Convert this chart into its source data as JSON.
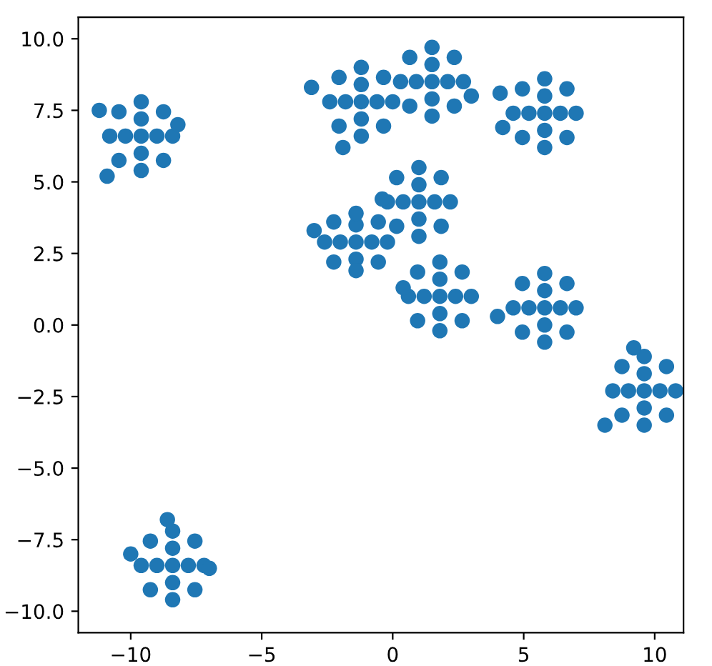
{
  "chart_data": {
    "type": "scatter",
    "x": [
      -9.6,
      -9.0,
      -10.2,
      -9.6,
      -9.6,
      -8.4,
      -10.8,
      -9.6,
      -9.6,
      -8.75,
      -10.45,
      -8.75,
      -10.45,
      -11.2,
      -10.9,
      -8.2,
      -1.4,
      -0.8,
      -2.0,
      -1.4,
      -1.4,
      -0.2,
      -2.6,
      -1.4,
      -1.4,
      -0.55,
      -2.25,
      -0.55,
      -2.25,
      -3.0,
      -1.2,
      -0.6,
      -1.8,
      -1.2,
      -1.2,
      0.0,
      -2.4,
      -1.2,
      -1.2,
      -0.35,
      -2.05,
      -0.35,
      -2.05,
      -3.1,
      -1.9,
      1.5,
      2.1,
      0.9,
      1.5,
      1.5,
      2.7,
      0.3,
      1.5,
      1.5,
      2.35,
      0.65,
      2.35,
      0.65,
      3.0,
      1.0,
      1.6,
      0.4,
      1.0,
      1.0,
      2.2,
      -0.2,
      1.0,
      1.0,
      1.85,
      0.15,
      1.85,
      0.15,
      -0.4,
      1.8,
      2.4,
      1.2,
      1.8,
      1.8,
      3.0,
      0.6,
      1.8,
      1.8,
      2.65,
      0.95,
      2.65,
      0.95,
      0.4,
      5.8,
      6.4,
      5.2,
      5.8,
      5.8,
      7.0,
      4.6,
      5.8,
      5.8,
      6.65,
      4.95,
      6.65,
      4.95,
      4.2,
      4.1,
      5.8,
      6.4,
      5.2,
      5.8,
      5.8,
      7.0,
      4.6,
      5.8,
      5.8,
      6.65,
      4.95,
      6.65,
      4.95,
      4.0,
      9.6,
      10.2,
      9.0,
      9.6,
      9.6,
      10.8,
      8.4,
      9.6,
      9.6,
      10.45,
      8.75,
      10.45,
      8.75,
      9.2,
      8.1,
      -8.4,
      -7.8,
      -9.0,
      -8.4,
      -8.4,
      -7.2,
      -9.6,
      -8.4,
      -8.4,
      -7.55,
      -9.25,
      -7.55,
      -9.25,
      -10.0,
      -8.6,
      -7.0
    ],
    "values": [
      6.6,
      6.6,
      6.6,
      7.2,
      6.0,
      6.6,
      6.6,
      7.8,
      5.4,
      7.45,
      7.45,
      5.75,
      5.75,
      7.5,
      5.2,
      7.0,
      2.9,
      2.9,
      2.9,
      3.5,
      2.3,
      2.9,
      2.9,
      3.9,
      1.9,
      3.6,
      3.6,
      2.2,
      2.2,
      3.3,
      7.8,
      7.8,
      7.8,
      8.4,
      7.2,
      7.8,
      7.8,
      9.0,
      6.6,
      8.65,
      8.65,
      6.95,
      6.95,
      8.3,
      6.2,
      8.5,
      8.5,
      8.5,
      9.1,
      7.9,
      8.5,
      8.5,
      9.7,
      7.3,
      9.35,
      9.35,
      7.65,
      7.65,
      8.0,
      4.3,
      4.3,
      4.3,
      4.9,
      3.7,
      4.3,
      4.3,
      5.5,
      3.1,
      5.15,
      5.15,
      3.45,
      3.45,
      4.4,
      1.0,
      1.0,
      1.0,
      1.6,
      0.4,
      1.0,
      1.0,
      2.2,
      -0.2,
      1.85,
      1.85,
      0.15,
      0.15,
      1.3,
      7.4,
      7.4,
      7.4,
      8.0,
      6.8,
      7.4,
      7.4,
      8.6,
      6.2,
      8.25,
      8.25,
      6.55,
      6.55,
      6.9,
      8.1,
      0.6,
      0.6,
      0.6,
      1.2,
      0.0,
      0.6,
      0.6,
      1.8,
      -0.6,
      1.45,
      1.45,
      -0.25,
      -0.25,
      0.3,
      -2.3,
      -2.3,
      -2.3,
      -1.7,
      -2.9,
      -2.3,
      -2.3,
      -1.1,
      -3.5,
      -1.45,
      -1.45,
      -3.15,
      -3.15,
      -0.8,
      -3.5,
      -8.4,
      -8.4,
      -8.4,
      -7.8,
      -9.0,
      -8.4,
      -8.4,
      -7.2,
      -9.6,
      -7.55,
      -7.55,
      -9.25,
      -9.25,
      -8.0,
      -6.8,
      -8.5
    ],
    "color": "#1f77b4",
    "xlim": [
      -12.0,
      11.1
    ],
    "ylim": [
      -10.75,
      10.75
    ],
    "xticks": [
      {
        "value": -10,
        "label": "−10"
      },
      {
        "value": -5,
        "label": "−5"
      },
      0,
      5,
      10
    ],
    "yticks": [
      {
        "value": -10,
        "label": "−10.0"
      },
      {
        "value": -7.5,
        "label": "−7.5"
      },
      {
        "value": -5,
        "label": "−5.0"
      },
      {
        "value": -2.5,
        "label": "−2.5"
      },
      {
        "value": 0,
        "label": "0.0"
      },
      {
        "value": 2.5,
        "label": "2.5"
      },
      {
        "value": 5,
        "label": "5.0"
      },
      {
        "value": 7.5,
        "label": "7.5"
      },
      {
        "value": 10,
        "label": "10.0"
      }
    ]
  }
}
